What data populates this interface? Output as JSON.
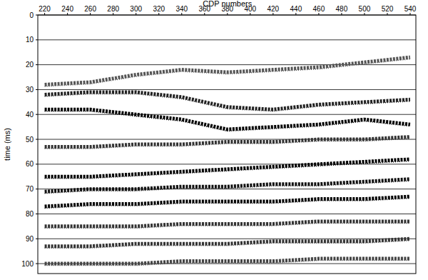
{
  "chart_data": {
    "type": "line",
    "title": "CDP numbers",
    "y_label": "time (ms)",
    "x": [
      220,
      260,
      300,
      340,
      380,
      420,
      460,
      500,
      540
    ],
    "series": [
      {
        "color": "#555555",
        "values": [
          28,
          27,
          24,
          22,
          23,
          22,
          21,
          19,
          17
        ]
      },
      {
        "color": "#222222",
        "values": [
          32,
          31,
          31,
          33,
          37,
          38,
          36,
          35,
          34
        ]
      },
      {
        "color": "#000000",
        "values": [
          38,
          38,
          40,
          42,
          46,
          45,
          44,
          42,
          44
        ]
      },
      {
        "color": "#333333",
        "values": [
          53,
          53,
          52,
          52,
          51,
          51,
          50,
          50,
          49
        ]
      },
      {
        "color": "#000000",
        "values": [
          65,
          65,
          64,
          63,
          62,
          61,
          60,
          59,
          58
        ]
      },
      {
        "color": "#111111",
        "values": [
          71,
          70,
          70,
          69,
          69,
          68,
          68,
          67,
          66
        ]
      },
      {
        "color": "#000000",
        "values": [
          77,
          76,
          76,
          75,
          75,
          75,
          74,
          74,
          73
        ]
      },
      {
        "color": "#333333",
        "values": [
          85,
          85,
          85,
          84,
          84,
          84,
          83,
          83,
          83
        ]
      },
      {
        "color": "#333333",
        "values": [
          93,
          93,
          92,
          92,
          92,
          91,
          91,
          91,
          90
        ]
      },
      {
        "color": "#444444",
        "values": [
          100,
          100,
          100,
          99,
          99,
          99,
          98,
          98,
          98
        ]
      }
    ],
    "xlim": [
      214,
      545
    ],
    "ylim": [
      0,
      104
    ],
    "xticks": [
      220,
      240,
      260,
      280,
      300,
      320,
      340,
      360,
      380,
      400,
      420,
      440,
      460,
      480,
      500,
      520,
      540
    ],
    "yticks": [
      0,
      10,
      20,
      30,
      40,
      50,
      60,
      70,
      80,
      90,
      100
    ],
    "grid": true
  }
}
